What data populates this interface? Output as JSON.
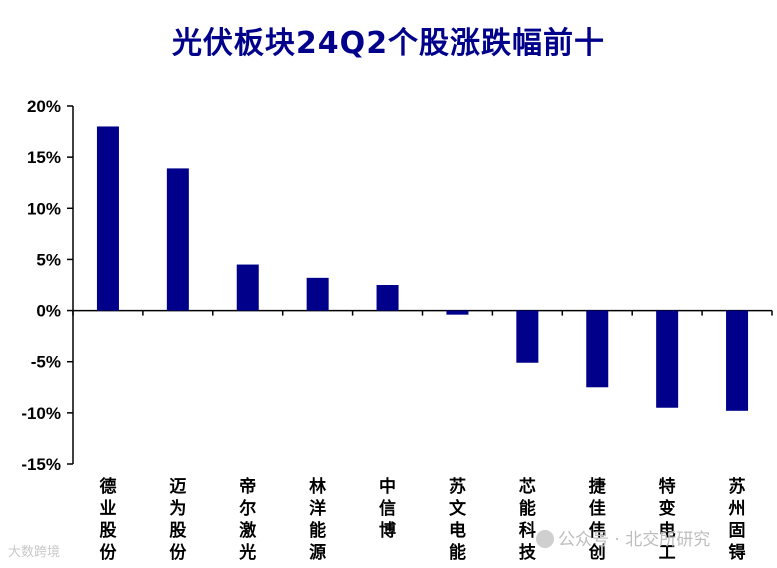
{
  "chart_data": {
    "type": "bar",
    "title": "光伏板块24Q2个股涨跌幅前十",
    "categories": [
      "德业股份",
      "迈为股份",
      "帝尔激光",
      "林洋能源",
      "中信博",
      "苏文电能",
      "芯能科技",
      "捷佳伟创",
      "特变电工",
      "苏州固锝"
    ],
    "values": [
      18.0,
      13.9,
      4.5,
      3.2,
      2.5,
      -0.4,
      -5.1,
      -7.5,
      -9.5,
      -9.8
    ],
    "yticks": [
      "20%",
      "15%",
      "10%",
      "5%",
      "0%",
      "-5%",
      "-10%",
      "-15%"
    ],
    "ylim": [
      -15,
      20
    ],
    "bar_color": "#00008B",
    "grid": false
  },
  "watermarks": {
    "left": "大数跨境",
    "right": "公众号 · 北交所研究"
  }
}
